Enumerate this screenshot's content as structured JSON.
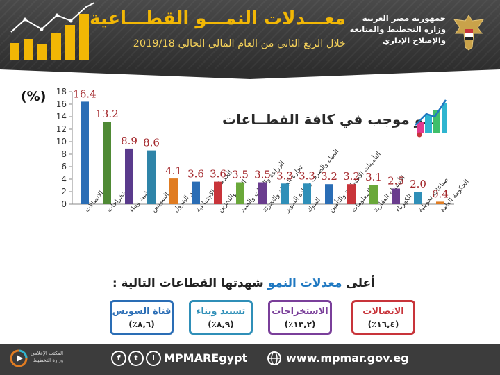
{
  "header": {
    "title": "معـــدلات النمـــو القطـــاعية",
    "subtitle": "خلال الربع الثاني من العام المالي الحالي 2019/18",
    "ministry_lines": [
      "جمهورية مصر العربية",
      "وزارة التخطيط والمتابعة",
      "والإصلاح الإداري"
    ]
  },
  "chart_labels": {
    "unit": "(%)",
    "note": "نمو موجب في كافة القطــاعات"
  },
  "chart_data": {
    "type": "bar",
    "categories": [
      "الاتصالات",
      "الاستخراجات",
      "تشييد وبناء",
      "قناة السويس",
      "تكرير البترول",
      "الخدمات الاجتماعية",
      "النقل والتخزين",
      "الزراعة والغابات والصيد",
      "تجارة الجملة والتجزئة",
      "المياه والصرف وإعادة التدوير",
      "البنوك",
      "التأمينات الاجتماعية والتأمين",
      "المعلومات",
      "الأنشطة العقارية",
      "الكهرباء",
      "صناعات تحويلية",
      "الحكومة العامة"
    ],
    "values": [
      16.4,
      13.2,
      8.9,
      8.6,
      4.1,
      3.6,
      3.6,
      3.5,
      3.5,
      3.3,
      3.3,
      3.2,
      3.2,
      3.1,
      2.5,
      2.0,
      0.4
    ],
    "value_labels": [
      "16.4",
      "13.2",
      "8.9",
      "8.6",
      "4.1",
      "3.6",
      "3.6",
      "3.5",
      "3.5",
      "3.3",
      "3.3",
      "3.2",
      "3.2",
      "3.1",
      "2.5",
      "2.0",
      "0.4"
    ],
    "colors": [
      "#2a6db5",
      "#4f8a35",
      "#5a3b8c",
      "#2f84a8",
      "#e07c22",
      "#2a6db5",
      "#c8343a",
      "#6aa83a",
      "#6a3d8e",
      "#2f8fb8",
      "#2f8fb8",
      "#2a6db5",
      "#c8343a",
      "#6aa83a",
      "#6a3d8e",
      "#2f8fb8",
      "#e07c22"
    ],
    "label_color": "#a3262a",
    "yticks": [
      "0",
      "2",
      "4",
      "6",
      "8",
      "10",
      "12",
      "14",
      "16",
      "18"
    ],
    "ylim": [
      0,
      18
    ],
    "grid": false
  },
  "highest": {
    "prefix": "أعلى",
    "highlight": "معدلات النمو",
    "suffix": "شهدتها القطاعات التالية :",
    "boxes": [
      {
        "name": "الاتصالات",
        "value": "(١٦,٤٪)",
        "color": "#c8343a"
      },
      {
        "name": "الاستخراجات",
        "value": "(١٣,٢٪)",
        "color": "#7a3f9a"
      },
      {
        "name": "تشييد وبناء",
        "value": "(٨,٩٪)",
        "color": "#2f8fb8"
      },
      {
        "name": "قناة السويس",
        "value": "(٨,٦٪)",
        "color": "#2a6db5"
      }
    ]
  },
  "footer": {
    "handle": "MPMAREgypt",
    "website": "www.mpmar.gov.eg",
    "logo_lines": [
      "المكتب الإعلامي",
      "وزارة التخطيط"
    ],
    "social_icons": [
      "f",
      "t",
      "i"
    ]
  }
}
